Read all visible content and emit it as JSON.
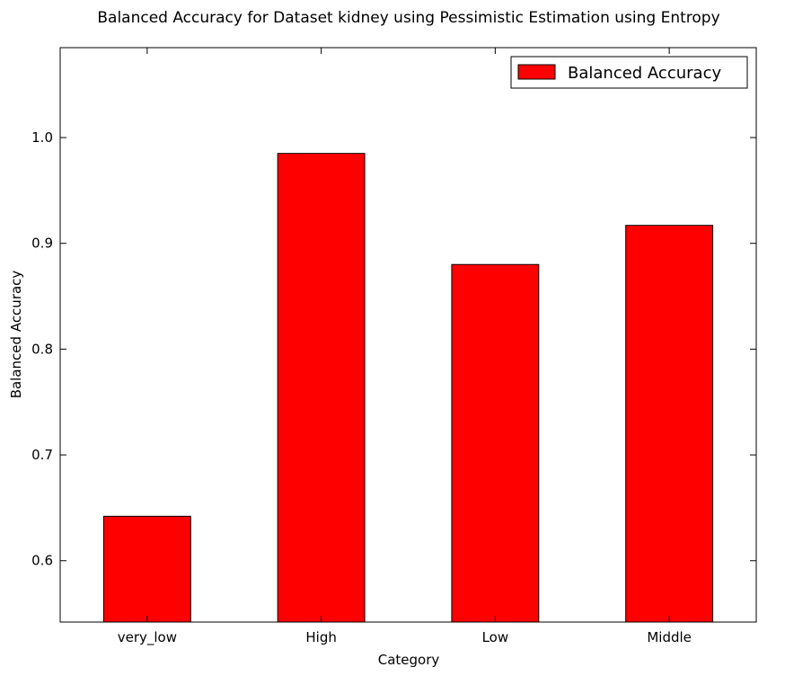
{
  "chart_data": {
    "type": "bar",
    "title": "Balanced Accuracy for Dataset kidney using Pessimistic Estimation using Entropy",
    "xlabel": "Category",
    "ylabel": "Balanced Accuracy",
    "categories": [
      "very_low",
      "High",
      "Low",
      "Middle"
    ],
    "series": [
      {
        "name": "Balanced Accuracy",
        "values": [
          0.642,
          0.985,
          0.88,
          0.917
        ],
        "color": "#ff0000"
      }
    ],
    "ylim": [
      0.542,
      1.085
    ],
    "yticks": [
      0.6,
      0.7,
      0.8,
      0.9,
      1.0
    ],
    "ytick_labels": [
      "0.6",
      "0.7",
      "0.8",
      "0.9",
      "1.0"
    ],
    "grid": false,
    "legend_position": "top-right"
  }
}
